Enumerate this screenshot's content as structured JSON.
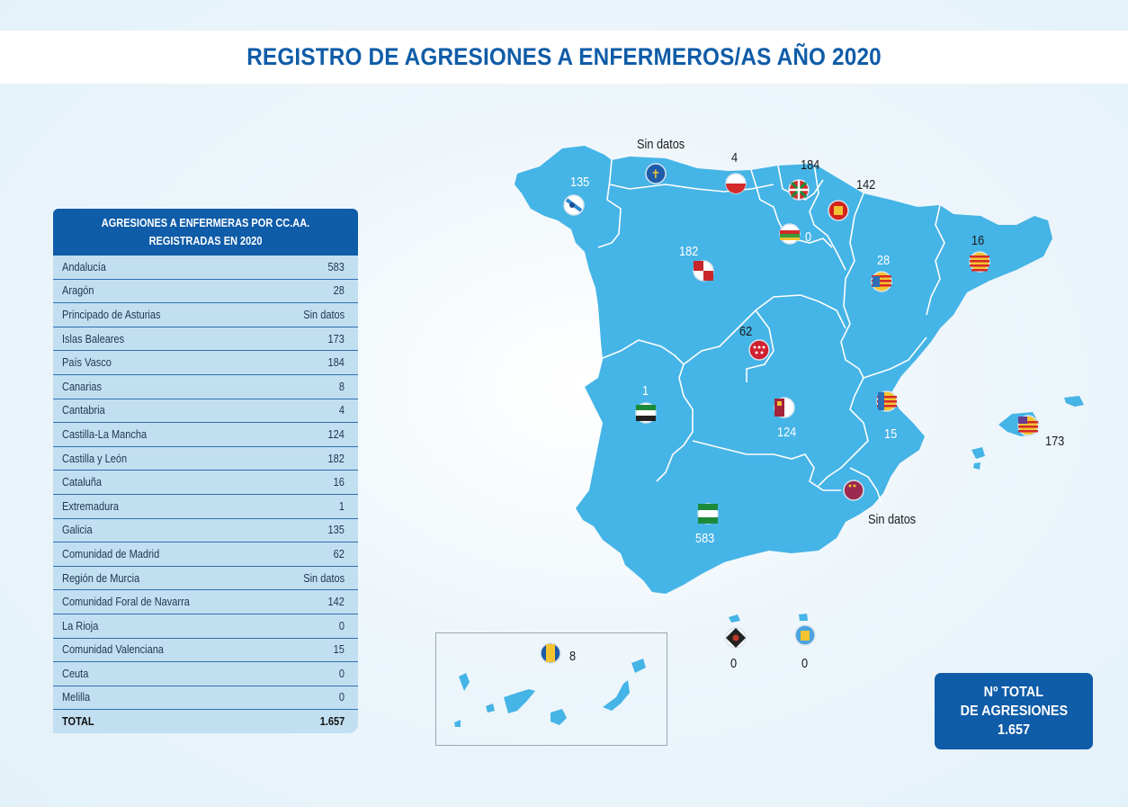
{
  "title": "REGISTRO DE AGRESIONES A ENFERMEROS/AS AÑO 2020",
  "table": {
    "header_line1": "AGRESIONES A ENFERMERAS POR CC.AA.",
    "header_line2": "REGISTRADAS EN 2020",
    "rows": [
      {
        "region": "Andalucía",
        "value": "583"
      },
      {
        "region": "Aragón",
        "value": "28"
      },
      {
        "region": "Principado de Asturias",
        "value": "Sin datos"
      },
      {
        "region": "Islas Baleares",
        "value": "173"
      },
      {
        "region": "País Vasco",
        "value": "184"
      },
      {
        "region": "Canarias",
        "value": "8"
      },
      {
        "region": "Cantabria",
        "value": "4"
      },
      {
        "region": "Castilla-La Mancha",
        "value": "124"
      },
      {
        "region": "Castilla y León",
        "value": "182"
      },
      {
        "region": "Cataluña",
        "value": "16"
      },
      {
        "region": "Extremadura",
        "value": "1"
      },
      {
        "region": "Galicia",
        "value": "135"
      },
      {
        "region": "Comunidad de Madrid",
        "value": "62"
      },
      {
        "region": "Región de Murcia",
        "value": "Sin datos"
      },
      {
        "region": "Comunidad Foral de Navarra",
        "value": "142"
      },
      {
        "region": "La Rioja",
        "value": "0"
      },
      {
        "region": "Comunidad Valenciana",
        "value": "15"
      },
      {
        "region": "Ceuta",
        "value": "0"
      },
      {
        "region": "Melilla",
        "value": "0"
      }
    ],
    "total_label": "TOTAL",
    "total_value": "1.657"
  },
  "map_labels": {
    "galicia": "135",
    "asturias": "Sin datos",
    "cantabria": "4",
    "pais_vasco": "184",
    "navarra": "142",
    "rioja": "0",
    "castilla_leon": "182",
    "cataluna": "16",
    "aragon": "28",
    "madrid": "62",
    "extremadura": "1",
    "castilla_mancha": "124",
    "valencia": "15",
    "baleares": "173",
    "murcia": "Sin datos",
    "andalucia": "583",
    "canarias": "8",
    "ceuta": "0",
    "melilla": "0"
  },
  "total_box": {
    "line1": "Nº TOTAL",
    "line2": "DE AGRESIONES",
    "line3": "1.657"
  },
  "colors": {
    "map_fill": "#45b4e6",
    "brand_blue": "#0f5ca8",
    "table_bg": "#c2dff1"
  },
  "icons": [
    "flag-galicia-icon",
    "flag-asturias-icon",
    "flag-cantabria-icon",
    "flag-pais-vasco-icon",
    "flag-navarra-icon",
    "flag-rioja-icon",
    "flag-castilla-leon-icon",
    "flag-cataluna-icon",
    "flag-aragon-icon",
    "flag-madrid-icon",
    "flag-extremadura-icon",
    "flag-castilla-mancha-icon",
    "flag-valencia-icon",
    "flag-baleares-icon",
    "flag-murcia-icon",
    "flag-andalucia-icon",
    "flag-canarias-icon",
    "flag-ceuta-icon",
    "flag-melilla-icon"
  ]
}
